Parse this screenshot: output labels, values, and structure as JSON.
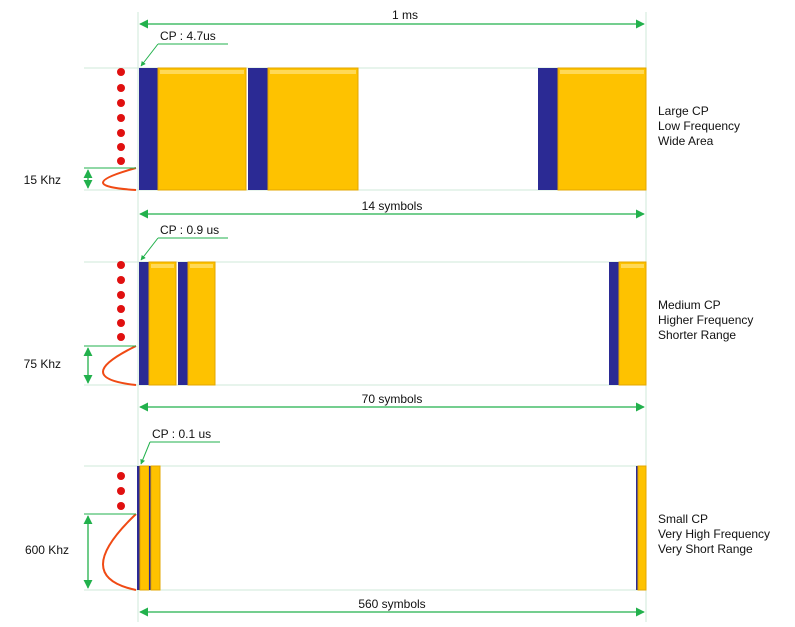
{
  "colors": {
    "cp": "#2b2a94",
    "symbol": "#fec200",
    "symbol_edge": "#e3a700",
    "green": "#22b14c",
    "dots": "#e01010",
    "curve": "#f04a14"
  },
  "top_span_label": "1 ms",
  "panels": [
    {
      "cp_label": "CP : 4.7us",
      "freq_label": "15 Khz",
      "symbols_label": "14 symbols",
      "desc": [
        "Large CP",
        "Low Frequency",
        "Wide Area"
      ]
    },
    {
      "cp_label": "CP : 0.9 us",
      "freq_label": "75 Khz",
      "symbols_label": "70 symbols",
      "desc": [
        "Medium CP",
        "Higher Frequency",
        "Shorter Range"
      ]
    },
    {
      "cp_label": "CP : 0.1 us",
      "freq_label": "600 Khz",
      "symbols_label": "560 symbols",
      "desc": [
        "Small CP",
        "Very High Frequency",
        "Very Short Range"
      ]
    }
  ]
}
